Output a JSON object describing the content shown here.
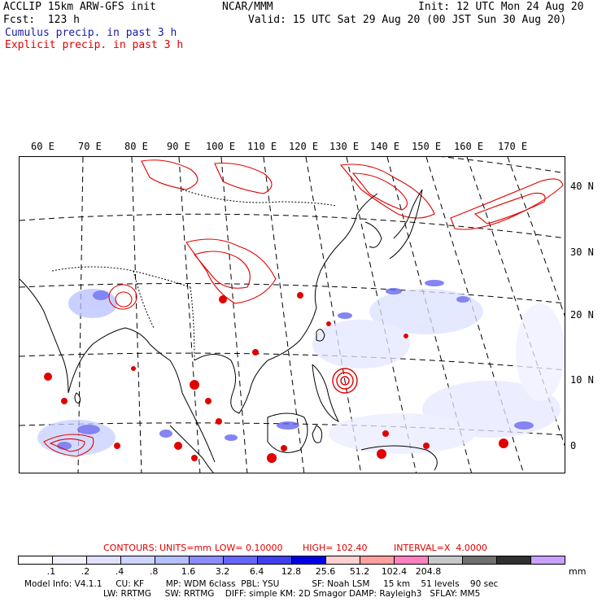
{
  "header": {
    "line1_left": "ACCLIP 15km ARW-GFS init",
    "line1_center": "NCAR/MMM",
    "line1_right": "Init: 12 UTC Mon 24 Aug 20",
    "line2_left": "Fcst:  123 h",
    "line2_right": "Valid: 15 UTC Sat 29 Aug 20 (00 JST Sun 30 Aug 20)",
    "legend_cumulus": "Cumulus precip. in past 3 h",
    "legend_explicit": "Explicit precip. in past 3 h"
  },
  "map": {
    "lon_labels": [
      "60 E",
      "70 E",
      "80 E",
      "90 E",
      "100 E",
      "110 E",
      "120 E",
      "130 E",
      "140 E",
      "150 E",
      "160 E",
      "170 E"
    ],
    "lat_labels": [
      "40 N",
      "30 N",
      "20 N",
      "10 N",
      "0"
    ],
    "colors": {
      "explicit": "#e00000",
      "cumulus": "#3333dd",
      "coast": "#000000",
      "grid": "#000000"
    }
  },
  "contour_info": {
    "contours": "CONTOURS:",
    "units": "UNITS=mm",
    "low": "LOW= 0.10000",
    "high": "HIGH= 102.40",
    "interval": "INTERVAL=X  4.0000"
  },
  "colorbar": {
    "colors": [
      "#ffffff",
      "#f2f2ff",
      "#e0e0ff",
      "#cdd6ff",
      "#b4c0ff",
      "#8c8cff",
      "#6666ff",
      "#4040f0",
      "#0000e6",
      "#ffd0d0",
      "#ffa0a0",
      "#ff80c0",
      "#c8c8c8",
      "#707070",
      "#303030",
      "#c8a0ff"
    ],
    "ticks": [
      ".1",
      ".2",
      ".4",
      ".8",
      "1.6",
      "3.2",
      "6.4",
      "12.8",
      "25.6",
      "51.2",
      "102.4",
      "204.8"
    ],
    "unit": "mm"
  },
  "footer": {
    "line1": "Model Info: V4.1.1     CU: KF        MP: WDM 6class  PBL: YSU            SF: Noah LSM     15 km    51 levels    90 sec",
    "line2": "LW: RRTMG     SW: RRTMG    DIFF: simple KM: 2D Smagor DAMP: Rayleigh3   SFLAY: MM5"
  }
}
